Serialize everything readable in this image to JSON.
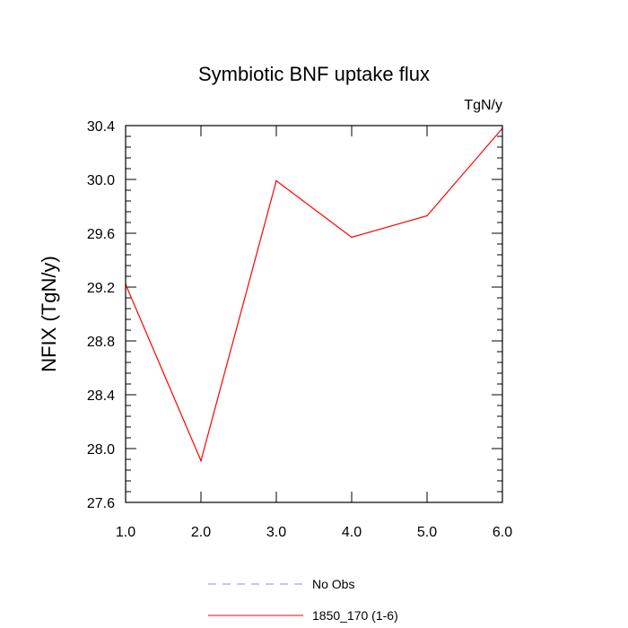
{
  "chart_data": {
    "type": "line",
    "title": "Symbiotic BNF uptake flux",
    "units": "TgN/y",
    "xlabel": "",
    "ylabel": "NFIX  (TgN/y)",
    "xlim": [
      1.0,
      6.0
    ],
    "ylim": [
      27.6,
      30.4
    ],
    "x_ticks": [
      "1.0",
      "2.0",
      "3.0",
      "4.0",
      "5.0",
      "6.0"
    ],
    "y_ticks": [
      "27.6",
      "28.0",
      "28.4",
      "28.8",
      "29.2",
      "29.6",
      "30.0",
      "30.4"
    ],
    "x": [
      1,
      2,
      3,
      4,
      5,
      6
    ],
    "series": [
      {
        "name": "1850_170 (1-6)",
        "values": [
          29.22,
          27.91,
          29.99,
          29.57,
          29.73,
          30.38
        ],
        "color": "#ff0000",
        "style": "solid"
      }
    ],
    "legend": [
      {
        "label": "No Obs",
        "color": "#8888ff",
        "style": "dashed"
      },
      {
        "label": "1850_170 (1-6)",
        "color": "#ff0000",
        "style": "solid"
      }
    ],
    "legend_position": "bottom",
    "grid": false
  }
}
